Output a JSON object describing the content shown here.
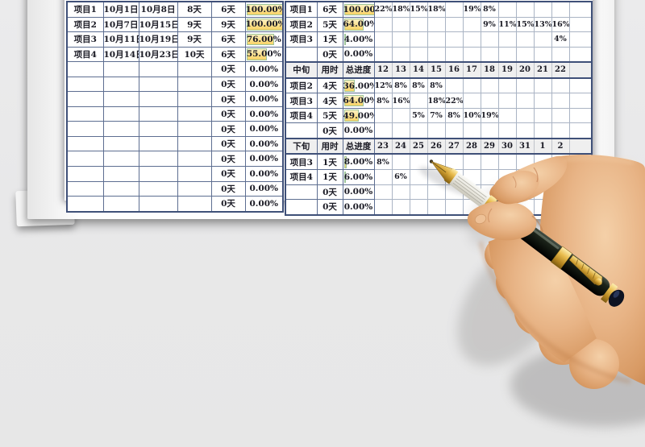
{
  "document": {
    "type": "project-schedule-spreadsheet",
    "language": "zh-CN"
  },
  "colors": {
    "page_background": "#e8e8e9",
    "grid_dark": "#5d6e91",
    "grid_light": "#aab4c4",
    "table_outline": "#3f5078",
    "header_fill": "#efefef",
    "progress_bar_fill": "#fbe08e",
    "progress_bar_border": "#9cc49a",
    "text": "#1a1a24",
    "pen_body": "#141a12",
    "pen_gold": "#d9a838",
    "pen_grip": "#ece9e0",
    "skin_mid": "#e2ab7c"
  },
  "left_table": {
    "rows": [
      {
        "project": "项目1",
        "start": "10月1日",
        "end": "10月8日",
        "planned": "8天",
        "used": "6天",
        "progress": "100.00%",
        "bar": 100
      },
      {
        "project": "项目2",
        "start": "10月7日",
        "end": "10月15日",
        "planned": "9天",
        "used": "9天",
        "progress": "100.00%",
        "bar": 100
      },
      {
        "project": "项目3",
        "start": "10月11日",
        "end": "10月19日",
        "planned": "9天",
        "used": "6天",
        "progress": "76.00%",
        "bar": 76
      },
      {
        "project": "项目4",
        "start": "10月14日",
        "end": "10月23日",
        "planned": "10天",
        "used": "6天",
        "progress": "55.00%",
        "bar": 55
      },
      {
        "project": "",
        "start": "",
        "end": "",
        "planned": "",
        "used": "0天",
        "progress": "0.00%",
        "bar": 0
      },
      {
        "project": "",
        "start": "",
        "end": "",
        "planned": "",
        "used": "0天",
        "progress": "0.00%",
        "bar": 0
      },
      {
        "project": "",
        "start": "",
        "end": "",
        "planned": "",
        "used": "0天",
        "progress": "0.00%",
        "bar": 0
      },
      {
        "project": "",
        "start": "",
        "end": "",
        "planned": "",
        "used": "0天",
        "progress": "0.00%",
        "bar": 0
      },
      {
        "project": "",
        "start": "",
        "end": "",
        "planned": "",
        "used": "0天",
        "progress": "0.00%",
        "bar": 0
      },
      {
        "project": "",
        "start": "",
        "end": "",
        "planned": "",
        "used": "0天",
        "progress": "0.00%",
        "bar": 0
      },
      {
        "project": "",
        "start": "",
        "end": "",
        "planned": "",
        "used": "0天",
        "progress": "0.00%",
        "bar": 0
      },
      {
        "project": "",
        "start": "",
        "end": "",
        "planned": "",
        "used": "0天",
        "progress": "0.00%",
        "bar": 0
      },
      {
        "project": "",
        "start": "",
        "end": "",
        "planned": "",
        "used": "0天",
        "progress": "0.00%",
        "bar": 0
      },
      {
        "project": "",
        "start": "",
        "end": "",
        "planned": "",
        "used": "0天",
        "progress": "0.00%",
        "bar": 0
      }
    ]
  },
  "right_table": {
    "sections": [
      {
        "header": null,
        "rows": [
          {
            "project": "项目1",
            "used": "6天",
            "progress": "100.00%",
            "bar": 100,
            "days": [
              "22%",
              "18%",
              "15%",
              "18%",
              "",
              "19%",
              "8%",
              "",
              "",
              "",
              ""
            ]
          },
          {
            "project": "项目2",
            "used": "5天",
            "progress": "64.00%",
            "bar": 64,
            "days": [
              "",
              "",
              "",
              "",
              "",
              "",
              "9%",
              "11%",
              "15%",
              "13%",
              "16%"
            ]
          },
          {
            "project": "项目3",
            "used": "1天",
            "progress": "4.00%",
            "bar": 4,
            "days": [
              "",
              "",
              "",
              "",
              "",
              "",
              "",
              "",
              "",
              "",
              "4%"
            ]
          },
          {
            "project": "",
            "used": "0天",
            "progress": "0.00%",
            "bar": 0,
            "days": [
              "",
              "",
              "",
              "",
              "",
              "",
              "",
              "",
              "",
              "",
              ""
            ]
          }
        ]
      },
      {
        "header": {
          "period": "中旬",
          "used_label": "用时",
          "progress_label": "总进度",
          "days": [
            "12",
            "13",
            "14",
            "15",
            "16",
            "17",
            "18",
            "19",
            "20",
            "21",
            "22"
          ]
        },
        "rows": [
          {
            "project": "项目2",
            "used": "4天",
            "progress": "36.00%",
            "bar": 36,
            "days": [
              "12%",
              "8%",
              "8%",
              "8%",
              "",
              "",
              "",
              "",
              "",
              "",
              ""
            ]
          },
          {
            "project": "项目3",
            "used": "4天",
            "progress": "64.00%",
            "bar": 64,
            "days": [
              "8%",
              "16%",
              "",
              "18%",
              "22%",
              "",
              "",
              "",
              "",
              "",
              ""
            ]
          },
          {
            "project": "项目4",
            "used": "5天",
            "progress": "49.00%",
            "bar": 49,
            "days": [
              "",
              "",
              "5%",
              "7%",
              "8%",
              "10%",
              "19%",
              "",
              "",
              "",
              ""
            ]
          },
          {
            "project": "",
            "used": "0天",
            "progress": "0.00%",
            "bar": 0,
            "days": [
              "",
              "",
              "",
              "",
              "",
              "",
              "",
              "",
              "",
              "",
              ""
            ]
          }
        ]
      },
      {
        "header": {
          "period": "下旬",
          "used_label": "用时",
          "progress_label": "总进度",
          "days": [
            "23",
            "24",
            "25",
            "26",
            "27",
            "28",
            "29",
            "30",
            "31",
            "1",
            "2"
          ]
        },
        "rows": [
          {
            "project": "项目3",
            "used": "1天",
            "progress": "8.00%",
            "bar": 8,
            "days": [
              "8%",
              "",
              "",
              "",
              "",
              "",
              "",
              "",
              "",
              "",
              ""
            ]
          },
          {
            "project": "项目4",
            "used": "1天",
            "progress": "6.00%",
            "bar": 6,
            "days": [
              "",
              "6%",
              "",
              "",
              "",
              "",
              "",
              "",
              "",
              "",
              ""
            ]
          },
          {
            "project": "",
            "used": "0天",
            "progress": "0.00%",
            "bar": 0,
            "days": [
              "",
              "",
              "",
              "",
              "",
              "",
              "",
              "",
              "",
              "",
              ""
            ]
          },
          {
            "project": "",
            "used": "0天",
            "progress": "0.00%",
            "bar": 0,
            "days": [
              "",
              "",
              "",
              "",
              "",
              "",
              "",
              "",
              "",
              "",
              ""
            ]
          }
        ]
      }
    ]
  }
}
